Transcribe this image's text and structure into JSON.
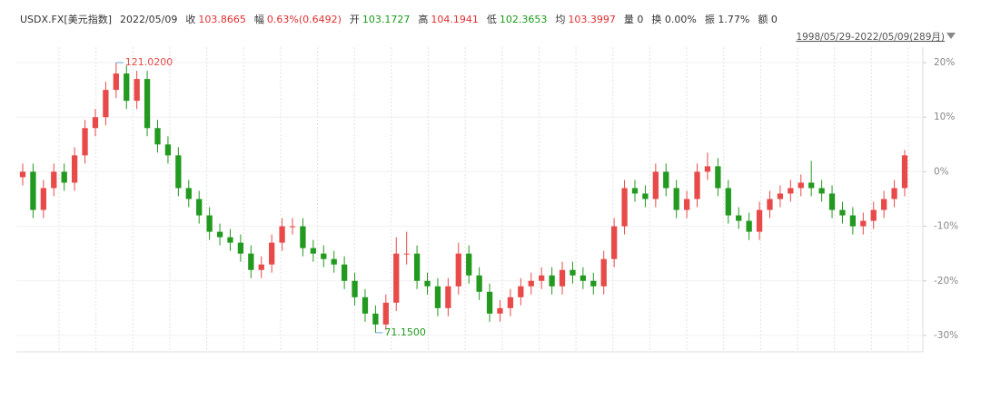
{
  "chart_data": {
    "type": "candlestick",
    "header": [
      {
        "text": "USDX.FX[美元指数]",
        "color": "#333333"
      },
      {
        "text": "2022/05/09",
        "color": "#333333"
      },
      {
        "text": "收",
        "color": "#333333"
      },
      {
        "text": "103.8665",
        "color": "#e03030"
      },
      {
        "text": "幅",
        "color": "#333333"
      },
      {
        "text": "0.63%(0.6492)",
        "color": "#e03030"
      },
      {
        "text": "开",
        "color": "#333333"
      },
      {
        "text": "103.1727",
        "color": "#1a9a1a"
      },
      {
        "text": "高",
        "color": "#333333"
      },
      {
        "text": "104.1941",
        "color": "#e03030"
      },
      {
        "text": "低",
        "color": "#333333"
      },
      {
        "text": "102.3653",
        "color": "#1a9a1a"
      },
      {
        "text": "均",
        "color": "#333333"
      },
      {
        "text": "103.3997",
        "color": "#e03030"
      },
      {
        "text": "量 0",
        "color": "#333333"
      },
      {
        "text": "换 0.00%",
        "color": "#333333"
      },
      {
        "text": "振 1.77%",
        "color": "#333333"
      },
      {
        "text": "额 0",
        "color": "#333333"
      }
    ],
    "range_label": "1998/05/29-2022/05/09(289月)",
    "max_label": "121.0200",
    "min_label": "71.1500",
    "up_color": "#e84a4a",
    "down_color": "#22991f",
    "ylim": [
      -33,
      23
    ],
    "yticks": [
      {
        "value": 20,
        "label": "20%"
      },
      {
        "value": 10,
        "label": "10%"
      },
      {
        "value": 0,
        "label": "0%"
      },
      {
        "value": -10,
        "label": "-10%"
      },
      {
        "value": -20,
        "label": "-20%"
      },
      {
        "value": -30,
        "label": "-30%"
      }
    ],
    "grid": true,
    "open": [
      -1,
      0,
      -7,
      -3,
      0,
      -2,
      3,
      8,
      10,
      15,
      18,
      13,
      17,
      8,
      5,
      3,
      -3,
      -5,
      -8,
      -11,
      -12,
      -13,
      -15,
      -18,
      -17,
      -13,
      -10,
      -10,
      -14,
      -15,
      -16,
      -17,
      -20,
      -23,
      -26,
      -28,
      -24,
      -15,
      -15,
      -20,
      -21,
      -25,
      -21,
      -15,
      -19,
      -22,
      -26,
      -25,
      -23,
      -21,
      -20,
      -19,
      -21,
      -18,
      -19,
      -20,
      -21,
      -16,
      -10,
      -3,
      -4,
      -5,
      0,
      -3,
      -7,
      -5,
      0,
      1,
      -3,
      -8,
      -9,
      -11,
      -7,
      -5,
      -4,
      -3,
      -2,
      -3,
      -4,
      -7,
      -8,
      -10,
      -9,
      -7,
      -5,
      -3
    ],
    "high": [
      1.5,
      1.5,
      -1.5,
      1.5,
      1.5,
      4.5,
      9.5,
      11.5,
      16.5,
      20,
      19.5,
      18.5,
      18.5,
      9.5,
      6.5,
      4.5,
      -1.5,
      -3.5,
      -6.5,
      -9.5,
      -10.5,
      -11.5,
      -13.5,
      -15.5,
      -11.5,
      -8.5,
      -8.5,
      -8.5,
      -12.5,
      -13.5,
      -14.5,
      -15.5,
      -18.5,
      -21.5,
      -24.5,
      -22.5,
      -12,
      -11,
      -13.5,
      -18.5,
      -19.5,
      -19.5,
      -13,
      -13.5,
      -17.5,
      -20.5,
      -23.5,
      -21.5,
      -19.5,
      -18.5,
      -17.5,
      -17.5,
      -16.5,
      -16.5,
      -17.5,
      -18.5,
      -14.5,
      -8.5,
      -1.5,
      -1.5,
      -2.5,
      1.5,
      1.5,
      -1.5,
      -3.5,
      1.5,
      3.5,
      2.5,
      -1.5,
      -6.5,
      -7.5,
      -5.5,
      -3.5,
      -2.5,
      -1.5,
      -0.5,
      2,
      -1.5,
      -2.5,
      -5.5,
      -6.5,
      -7.5,
      -5.5,
      -3.5,
      -1.5,
      4
    ],
    "low": [
      -2.5,
      -8.5,
      -8.5,
      -4.5,
      -3.5,
      -3.5,
      1.5,
      6.5,
      8.5,
      13.5,
      11.5,
      11.5,
      6.5,
      3.5,
      1.5,
      -4.5,
      -6.5,
      -9.5,
      -12.5,
      -13.5,
      -14.5,
      -16.5,
      -19.5,
      -19.5,
      -18.5,
      -14.5,
      -11.5,
      -15.5,
      -16.5,
      -17.5,
      -18.5,
      -21.5,
      -24.5,
      -27.5,
      -29.5,
      -29,
      -25.5,
      -17,
      -21.5,
      -22.5,
      -26.5,
      -26.5,
      -22.5,
      -20.5,
      -23.5,
      -27.5,
      -27.5,
      -26.5,
      -24.5,
      -22.5,
      -21.5,
      -22.5,
      -22.5,
      -20.5,
      -21.5,
      -22.5,
      -22.5,
      -17.5,
      -11.5,
      -5.5,
      -6.5,
      -6.5,
      -4.5,
      -8.5,
      -8.5,
      -6.5,
      -1.5,
      -4.5,
      -9.5,
      -10.5,
      -12.5,
      -12.5,
      -8.5,
      -6.5,
      -5.5,
      -4.5,
      -4.5,
      -5.5,
      -8.5,
      -9.5,
      -11.5,
      -11.5,
      -10.5,
      -8.5,
      -6.5,
      -4.5
    ],
    "close": [
      0,
      -7,
      -3,
      0,
      -2,
      3,
      8,
      10,
      15,
      18,
      13,
      17,
      8,
      5,
      3,
      -3,
      -5,
      -8,
      -11,
      -12,
      -13,
      -15,
      -18,
      -17,
      -13,
      -10,
      -10,
      -14,
      -15,
      -16,
      -17,
      -20,
      -23,
      -26,
      -28,
      -24,
      -15,
      -15,
      -20,
      -21,
      -25,
      -21,
      -15,
      -19,
      -22,
      -26,
      -25,
      -23,
      -21,
      -20,
      -19,
      -21,
      -18,
      -19,
      -20,
      -21,
      -16,
      -10,
      -3,
      -4,
      -5,
      0,
      -3,
      -7,
      -5,
      0,
      1,
      -3,
      -8,
      -9,
      -11,
      -7,
      -5,
      -4,
      -3,
      -2,
      -3,
      -4,
      -7,
      -8,
      -10,
      -9,
      -7,
      -5,
      -3,
      3
    ]
  }
}
